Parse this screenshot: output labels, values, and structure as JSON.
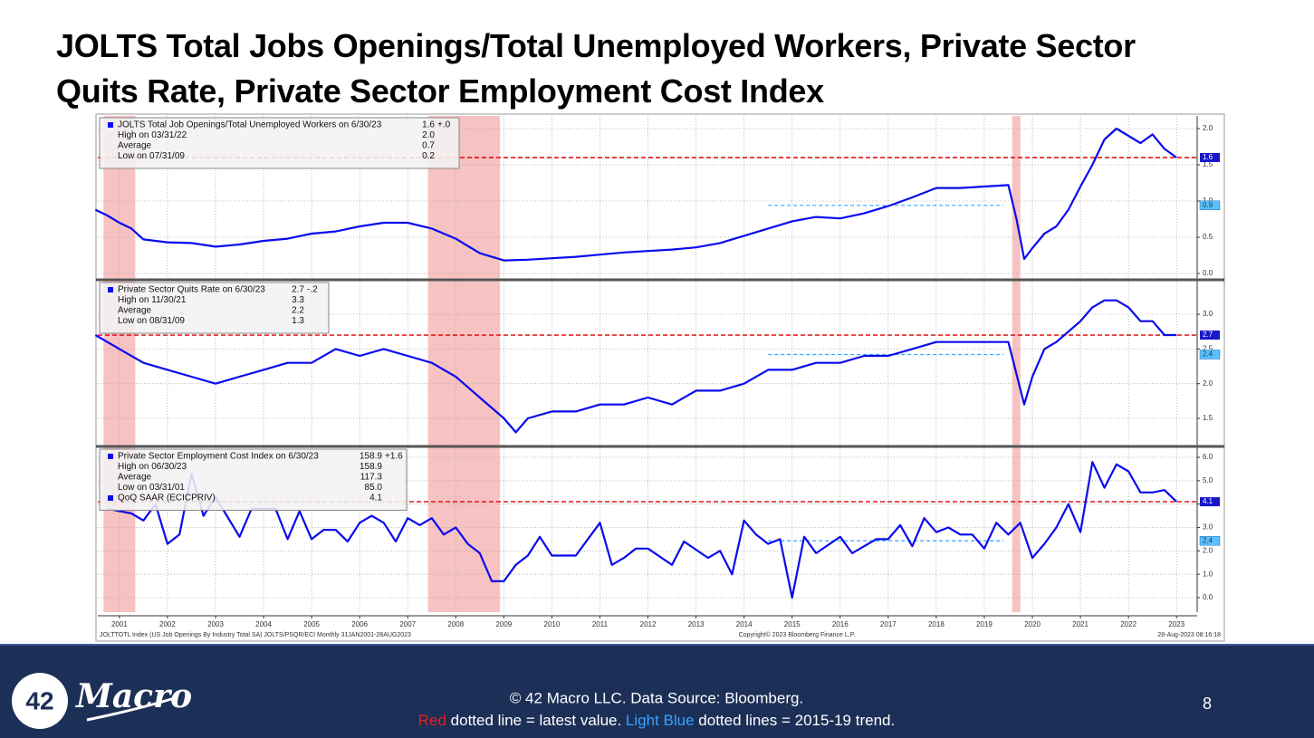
{
  "title": "JOLTS Total Jobs Openings/Total Unemployed Workers, Private Sector Quits Rate, Private Sector Employment Cost Index",
  "chart_data": [
    {
      "type": "line",
      "xlim": [
        2001.05,
        2023.93
      ],
      "ylim": [
        -0.075,
        2.175
      ],
      "yticks": [
        {
          "value": 0,
          "label": "0.0"
        },
        0.5,
        {
          "value": 1,
          "label": "1.0"
        },
        1.5,
        {
          "value": 2,
          "label": "2.0"
        }
      ],
      "grid": true,
      "recessions": [
        [
          2001.17,
          2001.83
        ],
        [
          2007.92,
          2009.42
        ],
        [
          2020.08,
          2020.25
        ]
      ],
      "x": [
        2001.0,
        2001.25,
        2001.5,
        2001.75,
        2002.0,
        2002.5,
        2003.0,
        2003.5,
        2004.0,
        2004.5,
        2005.0,
        2005.5,
        2006.0,
        2006.5,
        2007.0,
        2007.5,
        2008.0,
        2008.5,
        2009.0,
        2009.5,
        2010.0,
        2010.5,
        2011.0,
        2011.5,
        2012.0,
        2012.5,
        2013.0,
        2013.5,
        2014.0,
        2014.5,
        2015.0,
        2015.5,
        2016.0,
        2016.5,
        2017.0,
        2017.5,
        2018.0,
        2018.5,
        2019.0,
        2019.5,
        2020.0,
        2020.17,
        2020.33,
        2020.5,
        2020.75,
        2021.0,
        2021.25,
        2021.5,
        2021.75,
        2022.0,
        2022.25,
        2022.5,
        2022.75,
        2023.0,
        2023.25,
        2023.5
      ],
      "series": [
        {
          "color": "#0a0aee",
          "values": [
            0.88,
            0.8,
            0.7,
            0.62,
            0.47,
            0.43,
            0.42,
            0.37,
            0.4,
            0.45,
            0.48,
            0.55,
            0.58,
            0.65,
            0.7,
            0.7,
            0.62,
            0.48,
            0.28,
            0.18,
            0.19,
            0.21,
            0.23,
            0.26,
            0.29,
            0.31,
            0.33,
            0.36,
            0.42,
            0.52,
            0.62,
            0.72,
            0.78,
            0.76,
            0.83,
            0.93,
            1.05,
            1.18,
            1.18,
            1.2,
            1.22,
            0.75,
            0.2,
            0.35,
            0.55,
            0.65,
            0.88,
            1.2,
            1.5,
            1.85,
            2.0,
            1.9,
            1.8,
            1.92,
            1.72,
            1.6
          ]
        }
      ],
      "latest_line": {
        "value": 1.6,
        "color": "#e00000"
      },
      "trend_line": {
        "value": 0.94,
        "label": "0.9",
        "x": [
          2015.0,
          2019.9
        ],
        "color": "#33a4ff"
      },
      "legend_box": [
        {
          "label": "JOLTS Total Job Openings/Total Unemployed Workers on 6/30/23",
          "value": "1.6",
          "change": "+.0"
        },
        {
          "label": "High on 03/31/22",
          "value": "2.0"
        },
        {
          "label": "Average",
          "value": "0.7"
        },
        {
          "label": "Low on 07/31/09",
          "value": "0.2"
        }
      ]
    },
    {
      "type": "line",
      "xlim": [
        2001.05,
        2023.93
      ],
      "ylim": [
        1.109,
        3.483
      ],
      "yticks": [
        1.5,
        {
          "value": 2,
          "label": "2.0"
        },
        2.5,
        {
          "value": 3,
          "label": "3.0"
        }
      ],
      "grid": true,
      "recessions": [
        [
          2001.17,
          2001.83
        ],
        [
          2007.92,
          2009.42
        ],
        [
          2020.08,
          2020.25
        ]
      ],
      "x": [
        2001.0,
        2001.5,
        2002.0,
        2002.5,
        2003.0,
        2003.5,
        2004.0,
        2004.5,
        2005.0,
        2005.5,
        2006.0,
        2006.5,
        2007.0,
        2007.5,
        2008.0,
        2008.5,
        2009.0,
        2009.5,
        2009.75,
        2010.0,
        2010.5,
        2011.0,
        2011.5,
        2012.0,
        2012.5,
        2013.0,
        2013.5,
        2014.0,
        2014.5,
        2015.0,
        2015.5,
        2016.0,
        2016.5,
        2017.0,
        2017.5,
        2018.0,
        2018.5,
        2019.0,
        2019.5,
        2020.0,
        2020.33,
        2020.5,
        2020.75,
        2021.0,
        2021.5,
        2021.75,
        2022.0,
        2022.25,
        2022.5,
        2022.75,
        2023.0,
        2023.25,
        2023.5
      ],
      "series": [
        {
          "color": "#0a0aee",
          "values": [
            2.7,
            2.5,
            2.3,
            2.2,
            2.1,
            2.0,
            2.1,
            2.2,
            2.3,
            2.3,
            2.5,
            2.4,
            2.5,
            2.4,
            2.3,
            2.1,
            1.8,
            1.5,
            1.3,
            1.5,
            1.6,
            1.6,
            1.7,
            1.7,
            1.8,
            1.7,
            1.9,
            1.9,
            2.0,
            2.2,
            2.2,
            2.3,
            2.3,
            2.4,
            2.4,
            2.5,
            2.6,
            2.6,
            2.6,
            2.6,
            1.7,
            2.1,
            2.5,
            2.6,
            2.9,
            3.1,
            3.2,
            3.2,
            3.1,
            2.9,
            2.9,
            2.7,
            2.7
          ]
        }
      ],
      "latest_line": {
        "value": 2.7,
        "color": "#e00000"
      },
      "trend_line": {
        "value": 2.42,
        "label": "2.4",
        "x": [
          2015.0,
          2019.9
        ],
        "color": "#33a4ff"
      },
      "legend_box": [
        {
          "label": "Private Sector Quits Rate on 6/30/23",
          "value": "2.7",
          "change": "-.2"
        },
        {
          "label": "High on 11/30/21",
          "value": "3.3"
        },
        {
          "label": "Average",
          "value": "2.2"
        },
        {
          "label": "Low on 08/31/09",
          "value": "1.3"
        }
      ]
    },
    {
      "type": "line",
      "xlim": [
        2001.05,
        2023.93
      ],
      "ylim": [
        -0.619,
        6.426
      ],
      "yticks": [
        {
          "value": 0,
          "label": "0.0"
        },
        {
          "value": 1,
          "label": "1.0"
        },
        {
          "value": 2,
          "label": "2.0"
        },
        {
          "value": 3,
          "label": "3.0"
        },
        {
          "value": 4,
          "label": "4.0"
        },
        {
          "value": 5,
          "label": "5.0"
        },
        {
          "value": 6,
          "label": "6.0"
        }
      ],
      "grid": true,
      "recessions": [
        [
          2001.17,
          2001.83
        ],
        [
          2007.92,
          2009.42
        ],
        [
          2020.08,
          2020.25
        ]
      ],
      "xticks": [
        {
          "value": 2001.5,
          "label": "2001"
        },
        {
          "value": 2002.5,
          "label": "2002"
        },
        {
          "value": 2003.5,
          "label": "2003"
        },
        {
          "value": 2004.5,
          "label": "2004"
        },
        {
          "value": 2005.5,
          "label": "2005"
        },
        {
          "value": 2006.5,
          "label": "2006"
        },
        {
          "value": 2007.5,
          "label": "2007"
        },
        {
          "value": 2008.5,
          "label": "2008"
        },
        {
          "value": 2009.5,
          "label": "2009"
        },
        {
          "value": 2010.5,
          "label": "2010"
        },
        {
          "value": 2011.5,
          "label": "2011"
        },
        {
          "value": 2012.5,
          "label": "2012"
        },
        {
          "value": 2013.5,
          "label": "2013"
        },
        {
          "value": 2014.5,
          "label": "2014"
        },
        {
          "value": 2015.5,
          "label": "2015"
        },
        {
          "value": 2016.5,
          "label": "2016"
        },
        {
          "value": 2017.5,
          "label": "2017"
        },
        {
          "value": 2018.5,
          "label": "2018"
        },
        {
          "value": 2019.5,
          "label": "2019"
        },
        {
          "value": 2020.5,
          "label": "2020"
        },
        {
          "value": 2021.5,
          "label": "2021"
        },
        {
          "value": 2022.5,
          "label": "2022"
        },
        {
          "value": 2023.5,
          "label": "2023"
        }
      ],
      "x": [
        2001.25,
        2001.75,
        2002.0,
        2002.25,
        2002.5,
        2002.75,
        2003.0,
        2003.25,
        2003.5,
        2004.0,
        2004.25,
        2004.75,
        2005.0,
        2005.25,
        2005.5,
        2005.75,
        2006.0,
        2006.25,
        2006.5,
        2006.75,
        2007.0,
        2007.25,
        2007.5,
        2007.75,
        2008.0,
        2008.25,
        2008.5,
        2008.75,
        2009.0,
        2009.25,
        2009.5,
        2009.75,
        2010.0,
        2010.25,
        2010.5,
        2011.0,
        2011.5,
        2011.75,
        2012.0,
        2012.25,
        2012.5,
        2013.0,
        2013.25,
        2013.75,
        2014.0,
        2014.25,
        2014.5,
        2014.75,
        2015.0,
        2015.25,
        2015.5,
        2015.75,
        2016.0,
        2016.5,
        2016.75,
        2017.25,
        2017.5,
        2017.75,
        2018.0,
        2018.25,
        2018.5,
        2018.75,
        2019.0,
        2019.25,
        2019.5,
        2019.75,
        2020.0,
        2020.25,
        2020.5,
        2020.75,
        2021.0,
        2021.25,
        2021.5,
        2021.75,
        2022.0,
        2022.25,
        2022.5,
        2022.75,
        2023.0,
        2023.25,
        2023.5
      ],
      "series": [
        {
          "color": "#0a0aee",
          "values": [
            3.8,
            3.6,
            3.3,
            4.0,
            2.3,
            2.7,
            5.3,
            3.5,
            4.3,
            2.6,
            3.8,
            3.8,
            2.5,
            3.7,
            2.5,
            2.9,
            2.9,
            2.4,
            3.2,
            3.5,
            3.2,
            2.4,
            3.4,
            3.1,
            3.4,
            2.7,
            3.0,
            2.3,
            1.9,
            0.7,
            0.7,
            1.4,
            1.8,
            2.6,
            1.8,
            1.8,
            3.2,
            1.4,
            1.7,
            2.1,
            2.1,
            1.4,
            2.4,
            1.7,
            2.0,
            1.0,
            3.3,
            2.7,
            2.3,
            2.5,
            0.0,
            2.6,
            1.9,
            2.6,
            1.9,
            2.5,
            2.5,
            3.1,
            2.2,
            3.4,
            2.8,
            3.0,
            2.7,
            2.7,
            2.1,
            3.2,
            2.7,
            3.2,
            1.7,
            2.3,
            3.0,
            4.0,
            2.8,
            5.8,
            4.7,
            5.7,
            5.4,
            4.5,
            4.5,
            4.6,
            4.1
          ]
        }
      ],
      "latest_line": {
        "value": 4.1,
        "color": "#e00000"
      },
      "trend_line": {
        "value": 2.43,
        "label": "2.4",
        "x": [
          2015.0,
          2019.9
        ],
        "color": "#33a4ff"
      },
      "legend_box": [
        {
          "label": "Private Sector Employment Cost Index on 6/30/23",
          "value": "158.9",
          "change": "+1.6"
        },
        {
          "label": "High on 06/30/23",
          "value": "158.9"
        },
        {
          "label": "Average",
          "value": "117.3"
        },
        {
          "label": "Low on 03/31/01",
          "value": "85.0"
        },
        {
          "label": "QoQ SAAR (ECICPRIV)",
          "value": "4.1"
        }
      ]
    }
  ],
  "chart_notes": {
    "source": "JOLTTOTL Index (US Job Openings By Industry Total SA) JOLTS/PSQR/ECI  Monthly 31JAN2001-28AUG2023",
    "copyright": "Copyright© 2023 Bloomberg Finance L.P.",
    "timestamp": "28-Aug-2023 08:16:18"
  },
  "footer": {
    "logo_number": "42",
    "logo_text": "Macro",
    "line1": "© 42 Macro LLC. Data Source: Bloomberg.",
    "line2": [
      "Red",
      " dotted line = latest value. ",
      "Light Blue",
      " dotted lines = 2015-19 trend."
    ],
    "page": "8"
  }
}
